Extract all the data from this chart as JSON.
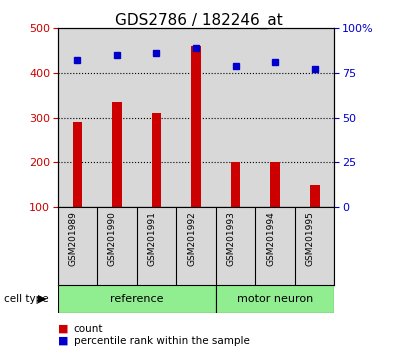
{
  "title": "GDS2786 / 182246_at",
  "samples": [
    "GSM201989",
    "GSM201990",
    "GSM201991",
    "GSM201992",
    "GSM201993",
    "GSM201994",
    "GSM201995"
  ],
  "counts": [
    290,
    335,
    310,
    460,
    200,
    200,
    150
  ],
  "percentile_ranks": [
    82,
    85,
    86,
    89,
    79,
    81,
    77
  ],
  "groups": [
    "reference",
    "reference",
    "reference",
    "reference",
    "motor neuron",
    "motor neuron",
    "motor neuron"
  ],
  "bar_color": "#CC0000",
  "dot_color": "#0000CC",
  "ylim_left": [
    100,
    500
  ],
  "ylim_right": [
    0,
    100
  ],
  "yticks_left": [
    100,
    200,
    300,
    400,
    500
  ],
  "yticks_right": [
    0,
    25,
    50,
    75,
    100
  ],
  "ytick_labels_right": [
    "0",
    "25",
    "50",
    "75",
    "100%"
  ],
  "legend_count_label": "count",
  "legend_pct_label": "percentile rank within the sample",
  "cell_type_label": "cell type",
  "background_color": "#ffffff",
  "plot_bg_color": "#d8d8d8",
  "ref_color": "#90EE90",
  "motor_color": "#90EE90",
  "title_fontsize": 11,
  "tick_fontsize": 8,
  "sample_fontsize": 6.5,
  "group_fontsize": 8,
  "legend_fontsize": 7.5
}
